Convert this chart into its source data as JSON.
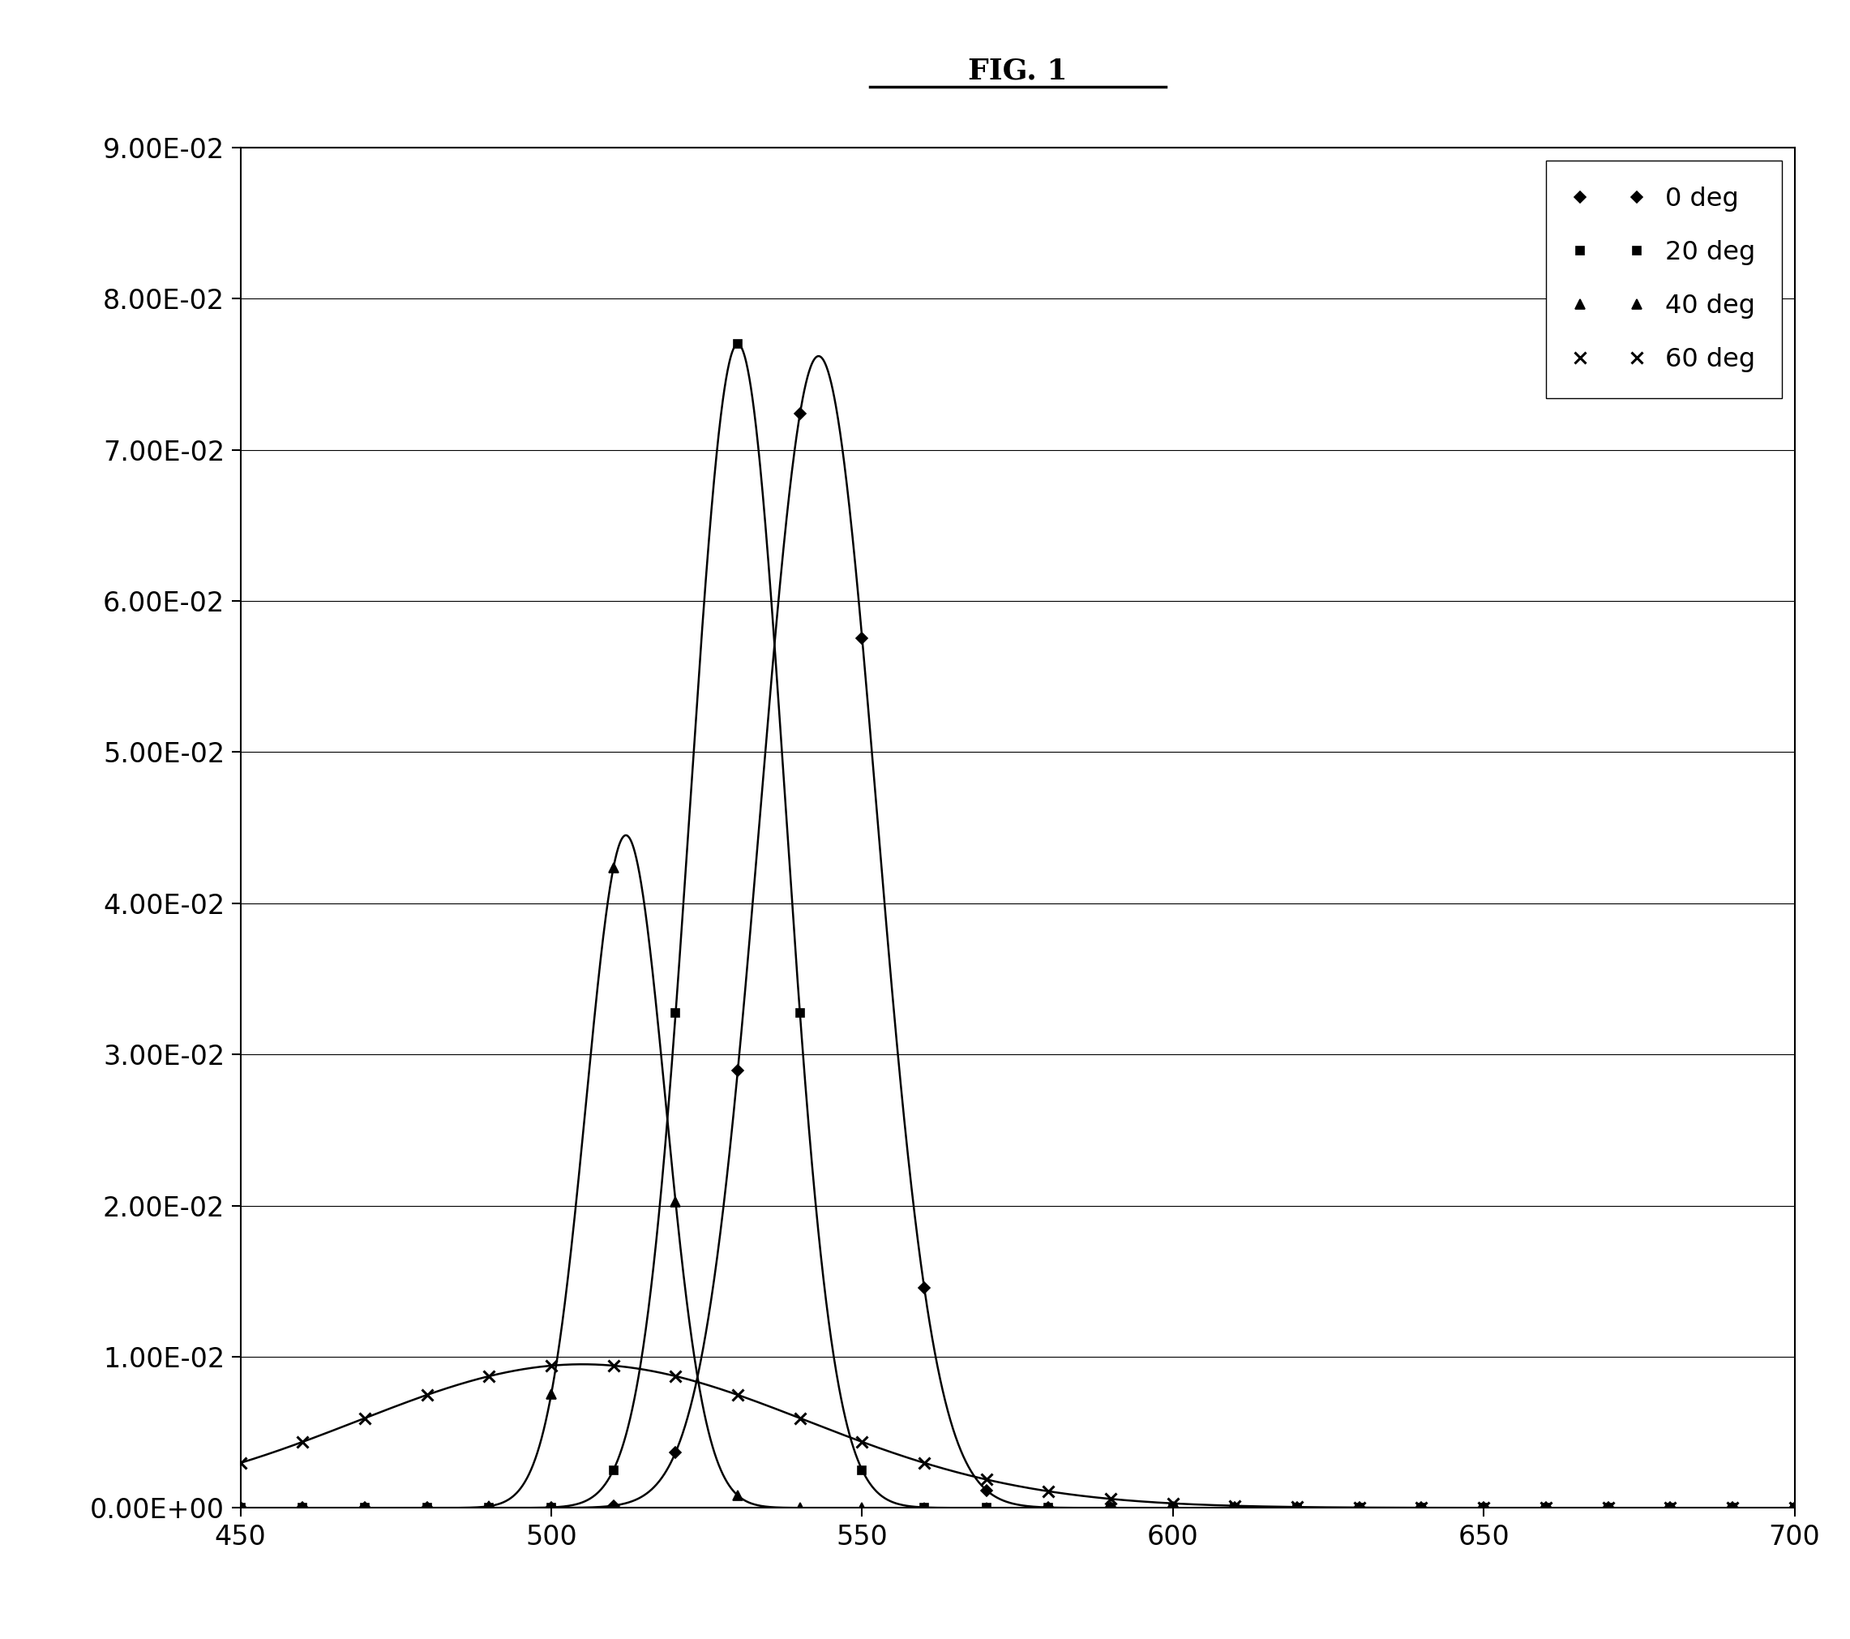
{
  "title": "FIG. 1",
  "xlim": [
    450,
    700
  ],
  "ylim": [
    0.0,
    0.09
  ],
  "xticks": [
    450,
    500,
    550,
    600,
    650,
    700
  ],
  "ytick_vals": [
    0.0,
    0.01,
    0.02,
    0.03,
    0.04,
    0.05,
    0.06,
    0.07,
    0.08,
    0.09
  ],
  "ytick_labels": [
    "0.00E+00",
    "1.00E-02",
    "2.00E-02",
    "3.00E-02",
    "4.00E-02",
    "5.00E-02",
    "6.00E-02",
    "7.00E-02",
    "8.00E-02",
    "9.00E-02"
  ],
  "series": [
    {
      "label": "0 deg",
      "marker": "D",
      "ms": 7,
      "peak_wl": 543,
      "peak_val": 0.0762,
      "fwhm": 22,
      "broad_base": false
    },
    {
      "label": "20 deg",
      "marker": "s",
      "ms": 7,
      "peak_wl": 530,
      "peak_val": 0.077,
      "fwhm": 18,
      "broad_base": false
    },
    {
      "label": "40 deg",
      "marker": "^",
      "ms": 8,
      "peak_wl": 512,
      "peak_val": 0.0445,
      "fwhm": 15,
      "broad_base": false
    },
    {
      "label": "60 deg",
      "marker": "x",
      "ms": 10,
      "peak_wl": 505,
      "peak_val": 0.0095,
      "fwhm": 85,
      "broad_base": false
    }
  ],
  "marker_every_nm": 10,
  "line_color": "#000000",
  "background_color": "#ffffff",
  "title_fontsize": 26,
  "tick_fontsize": 24,
  "legend_fontsize": 23,
  "linewidth": 1.8
}
